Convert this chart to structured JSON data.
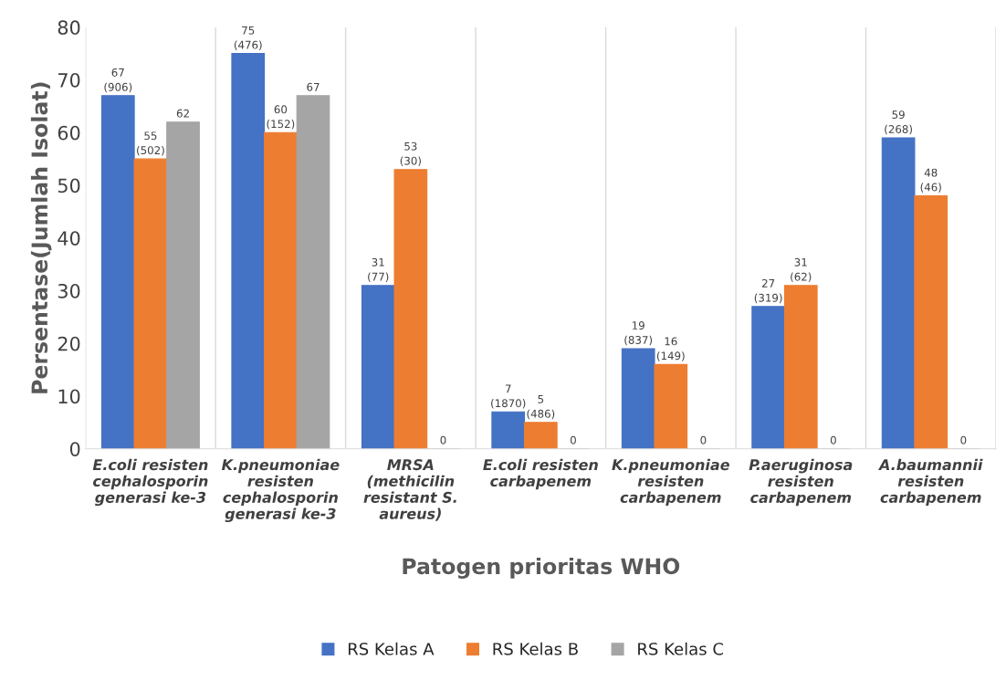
{
  "chart_data": {
    "type": "bar",
    "xlabel": "Patogen prioritas WHO",
    "ylabel": "Persentase(Jumlah Isolat)",
    "categories": [
      "E.coli resisten\ncephalosporin\ngenerasi ke-3",
      "K.pneumoniae\nresisten\ncephalosporin\ngenerasi ke-3",
      "MRSA\n(methicilin\nresistant S.\naureus)",
      "E.coli resisten\ncarbapenem",
      "K.pneumoniae\nresisten\ncarbapenem",
      "P.aeruginosa\nresisten\ncarbapenem",
      "A.baumannii\nresisten\ncarbapenem"
    ],
    "series": [
      {
        "name": "RS Kelas A",
        "color": "#4472c4",
        "values": [
          67,
          75,
          31,
          7,
          19,
          27,
          59
        ],
        "value_labels": [
          "67\n(906)",
          "75\n(476)",
          "31\n(77)",
          "7\n(1870)",
          "19\n(837)",
          "27\n(319)",
          "59\n(268)"
        ]
      },
      {
        "name": "RS Kelas B",
        "color": "#ed7d31",
        "values": [
          55,
          60,
          53,
          5,
          16,
          31,
          48
        ],
        "value_labels": [
          "55\n(502)",
          "60\n(152)",
          "53\n(30)",
          "5\n(486)",
          "16\n(149)",
          "31\n(62)",
          "48\n(46)"
        ]
      },
      {
        "name": "RS Kelas C",
        "color": "#a5a5a5",
        "values": [
          62,
          67,
          0,
          0,
          0,
          0,
          0
        ],
        "value_labels": [
          "62",
          "67",
          "0",
          "0",
          "0",
          "0",
          "0"
        ]
      }
    ],
    "ylim": [
      0,
      80
    ],
    "yticks": [
      0,
      10,
      20,
      30,
      40,
      50,
      60,
      70,
      80
    ],
    "grid": "x",
    "legend": "bottom"
  }
}
